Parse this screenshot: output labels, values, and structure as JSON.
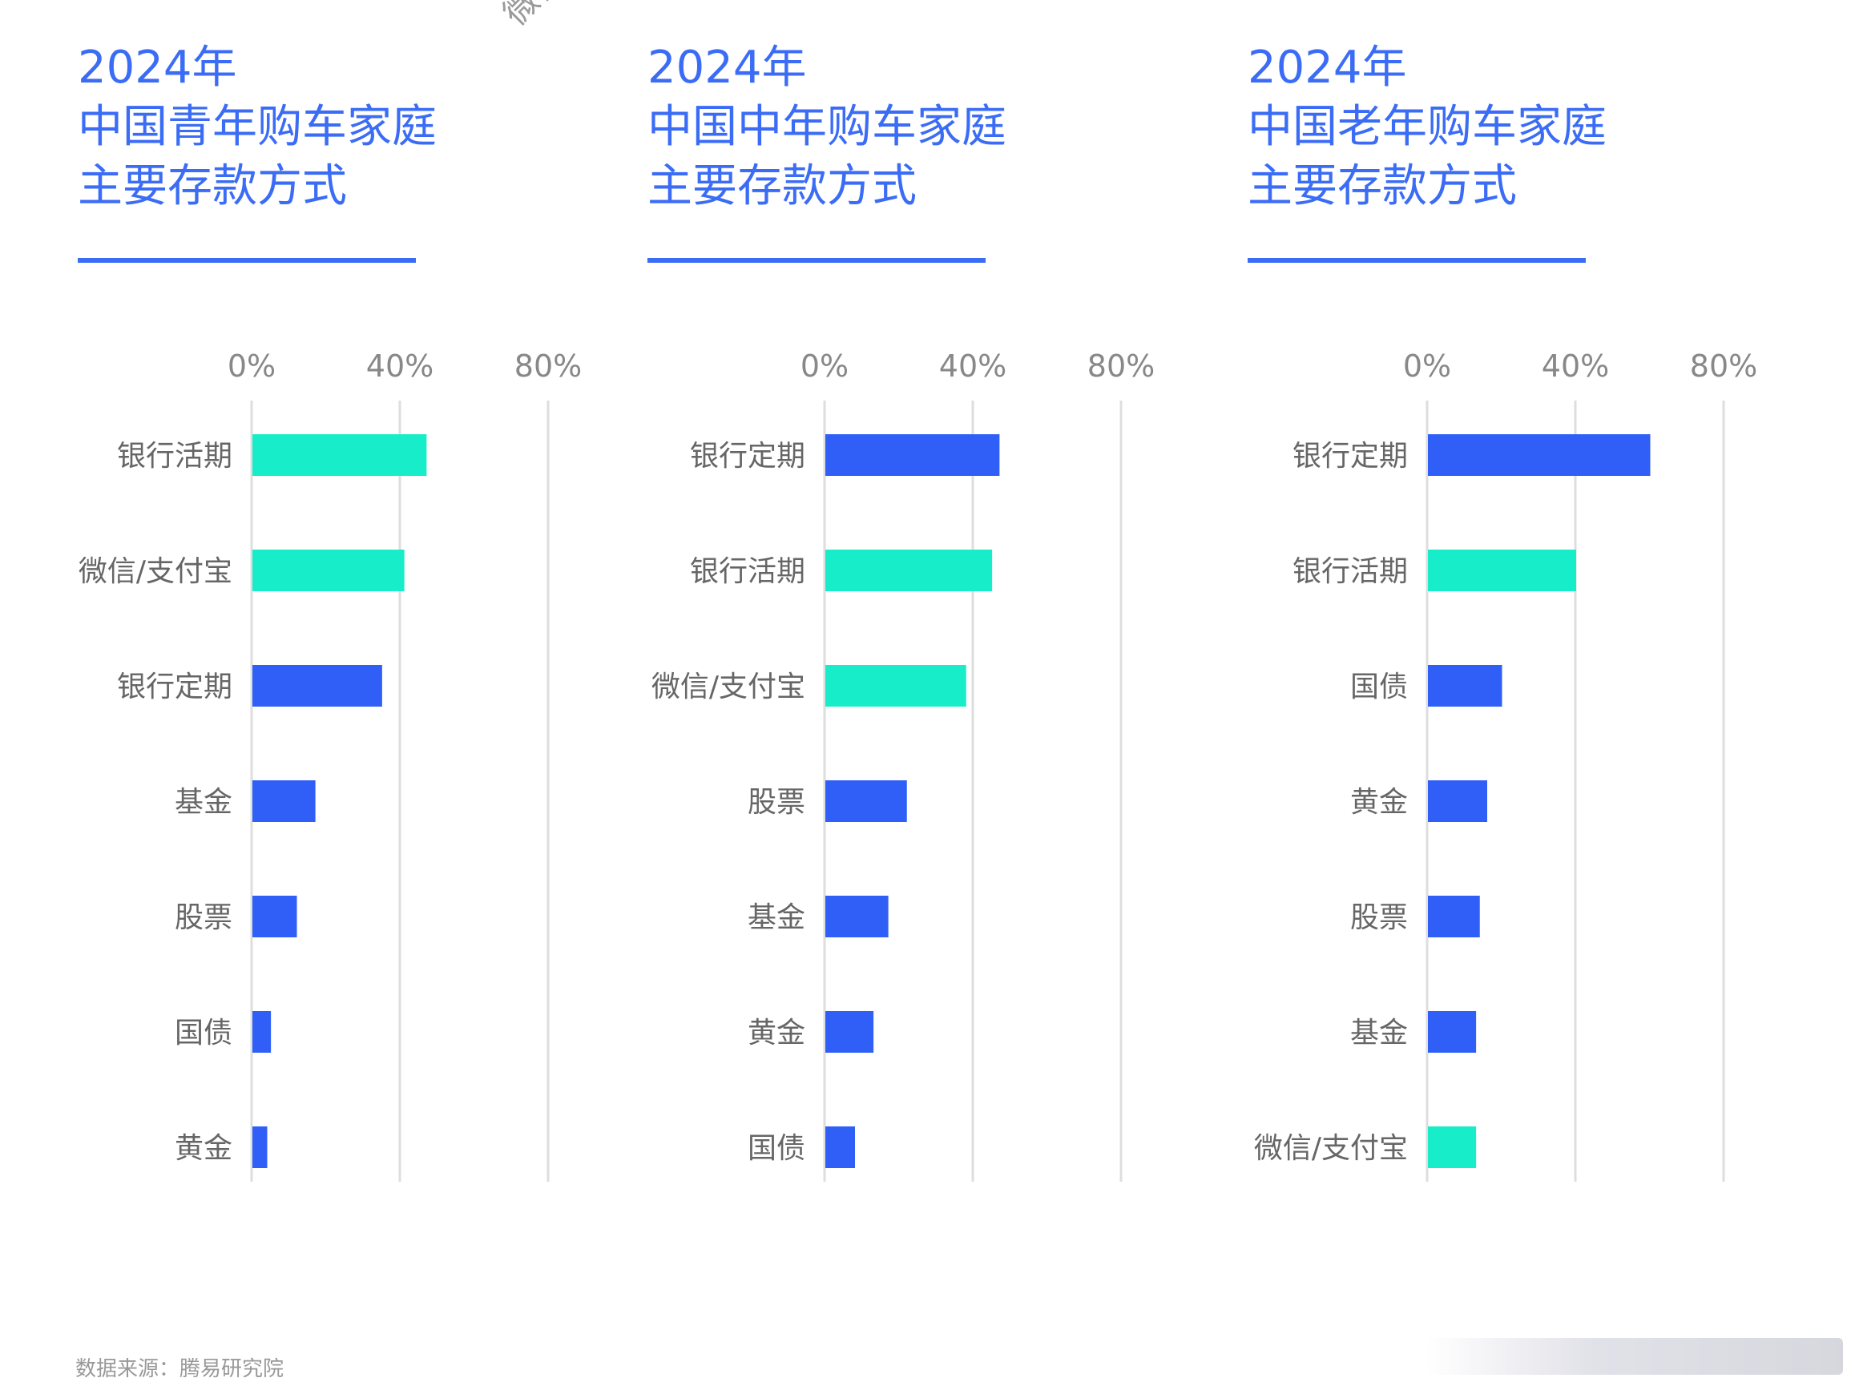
{
  "watermark": "微信",
  "source": "数据来源：腾易研究院",
  "colors": {
    "title": "#3b6cf6",
    "bar_blue": "#2f5ff7",
    "bar_teal": "#18edc9",
    "grid": "#dedede",
    "label": "#666666"
  },
  "panels": [
    {
      "title": [
        "2024年",
        "中国青年购车家庭",
        "主要存款方式"
      ]
    },
    {
      "title": [
        "2024年",
        "中国中年购车家庭",
        "主要存款方式"
      ]
    },
    {
      "title": [
        "2024年",
        "中国老年购车家庭",
        "主要存款方式"
      ]
    }
  ],
  "chart_data": [
    {
      "type": "bar",
      "orientation": "horizontal",
      "title": "2024年 中国青年购车家庭 主要存款方式",
      "categories": [
        "银行活期",
        "微信/支付宝",
        "银行定期",
        "基金",
        "股票",
        "国债",
        "黄金"
      ],
      "values": [
        47,
        41,
        35,
        17,
        12,
        5,
        4
      ],
      "colors": [
        "teal",
        "teal",
        "blue",
        "blue",
        "blue",
        "blue",
        "blue"
      ],
      "xlim": [
        0,
        80
      ],
      "ticks": [
        "0%",
        "40%",
        "80%"
      ],
      "grid": true
    },
    {
      "type": "bar",
      "orientation": "horizontal",
      "title": "2024年 中国中年购车家庭 主要存款方式",
      "categories": [
        "银行定期",
        "银行活期",
        "微信/支付宝",
        "股票",
        "基金",
        "黄金",
        "国债"
      ],
      "values": [
        47,
        45,
        38,
        22,
        17,
        13,
        8
      ],
      "colors": [
        "blue",
        "teal",
        "teal",
        "blue",
        "blue",
        "blue",
        "blue"
      ],
      "xlim": [
        0,
        80
      ],
      "ticks": [
        "0%",
        "40%",
        "80%"
      ],
      "grid": true
    },
    {
      "type": "bar",
      "orientation": "horizontal",
      "title": "2024年 中国老年购车家庭 主要存款方式",
      "categories": [
        "银行定期",
        "银行活期",
        "国债",
        "黄金",
        "股票",
        "基金",
        "微信/支付宝"
      ],
      "values": [
        60,
        40,
        20,
        16,
        14,
        13,
        13
      ],
      "colors": [
        "blue",
        "teal",
        "blue",
        "blue",
        "blue",
        "blue",
        "teal"
      ],
      "xlim": [
        0,
        80
      ],
      "ticks": [
        "0%",
        "40%",
        "80%"
      ],
      "grid": true
    }
  ]
}
